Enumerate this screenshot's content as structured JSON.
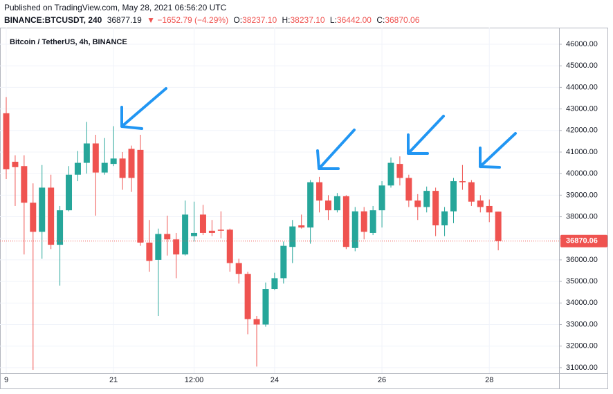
{
  "header": {
    "published": "Published on TradingView.com, May 28, 2021 06:56:20 UTC",
    "symbol": "BINANCE:BTCUSDT, 240",
    "price": "36877.19",
    "change": "▼ −1652.79 (−4.29%)",
    "ohlc": [
      {
        "label": "O:",
        "value": "38237.10"
      },
      {
        "label": "H:",
        "value": "38237.10"
      },
      {
        "label": "L:",
        "value": "36442.00"
      },
      {
        "label": "C:",
        "value": "36870.06"
      }
    ]
  },
  "chart_data": {
    "type": "candlestick",
    "title": "Bitcoin / TetherUS, 4h, BINANCE",
    "categories": [
      "9",
      null,
      null,
      null,
      null,
      null,
      null,
      null,
      null,
      null,
      null,
      null,
      "21",
      null,
      null,
      null,
      null,
      null,
      null,
      null,
      null,
      "12:00",
      null,
      null,
      null,
      null,
      null,
      null,
      null,
      null,
      "24",
      null,
      null,
      null,
      null,
      null,
      null,
      null,
      null,
      null,
      null,
      null,
      "26",
      null,
      null,
      null,
      null,
      null,
      null,
      null,
      null,
      null,
      null,
      null,
      "28",
      null
    ],
    "open": [
      42800,
      40550,
      40350,
      38650,
      37300,
      39350,
      36700,
      38300,
      39950,
      40500,
      41400,
      40050,
      40450,
      40700,
      41150,
      41100,
      36800,
      36000,
      37200,
      36950,
      36250,
      37100,
      38100,
      37350,
      37400,
      37400,
      35850,
      35350,
      33250,
      33000,
      34650,
      35150,
      36600,
      37600,
      37500,
      39600,
      38750,
      38300,
      38950,
      36550,
      38250,
      37250,
      38300,
      39450,
      40450,
      39800,
      38750,
      38450,
      39200,
      37600,
      38250,
      39650,
      39600,
      38750,
      38500,
      38237.1
    ],
    "high": [
      43550,
      40850,
      40850,
      39550,
      40400,
      39950,
      38500,
      40350,
      41050,
      42400,
      41800,
      41650,
      42200,
      41000,
      41300,
      41800,
      37850,
      37450,
      38050,
      37250,
      38750,
      38700,
      38550,
      37850,
      38250,
      37450,
      36050,
      35450,
      33400,
      34950,
      35400,
      36850,
      37850,
      38100,
      39700,
      39850,
      39000,
      39100,
      39000,
      38450,
      38450,
      38500,
      39650,
      40750,
      40800,
      39950,
      39050,
      39400,
      39350,
      38450,
      39800,
      40400,
      39700,
      39000,
      38800,
      38237.1
    ],
    "low": [
      39750,
      38500,
      36250,
      30900,
      36050,
      36500,
      34800,
      38250,
      39650,
      40000,
      38050,
      39950,
      40350,
      39250,
      39150,
      36650,
      35450,
      33400,
      36200,
      35150,
      36200,
      36850,
      37150,
      37100,
      37000,
      35450,
      34900,
      32550,
      31050,
      32900,
      34600,
      34900,
      35850,
      37450,
      36750,
      38200,
      37850,
      38200,
      36500,
      36400,
      36950,
      37150,
      37500,
      39350,
      39450,
      38450,
      37850,
      38200,
      37100,
      37100,
      37700,
      39250,
      38500,
      38200,
      37750,
      36442
    ],
    "close": [
      40200,
      40300,
      38650,
      37300,
      39350,
      36700,
      38300,
      39950,
      40500,
      41400,
      40050,
      40500,
      40700,
      39800,
      39800,
      36800,
      35950,
      37200,
      36950,
      36250,
      38100,
      37250,
      37250,
      37250,
      37350,
      35850,
      35350,
      33250,
      33000,
      34650,
      35150,
      36650,
      37550,
      37500,
      39600,
      38750,
      38300,
      38950,
      36600,
      38250,
      37300,
      38300,
      39450,
      40500,
      39800,
      38750,
      38450,
      39200,
      37600,
      38250,
      39650,
      39600,
      38700,
      38450,
      38200,
      36870.06
    ],
    "up_color": "#26a69a",
    "down_color": "#ef5350",
    "ylim": [
      30740,
      46770
    ],
    "yticks": [
      {
        "value": 31000,
        "label": "31000.00"
      },
      {
        "value": 32000,
        "label": "32000.00"
      },
      {
        "value": 33000,
        "label": "33000.00"
      },
      {
        "value": 34000,
        "label": "34000.00"
      },
      {
        "value": 35000,
        "label": "35000.00"
      },
      {
        "value": 36000,
        "label": "36000.00"
      },
      {
        "value": 37000,
        "label": "37000.00"
      },
      {
        "value": 38000,
        "label": "38000.00"
      },
      {
        "value": 39000,
        "label": "39000.00"
      },
      {
        "value": 40000,
        "label": "40000.00"
      },
      {
        "value": 41000,
        "label": "41000.00"
      },
      {
        "value": 42000,
        "label": "42000.00"
      },
      {
        "value": 43000,
        "label": "43000.00"
      },
      {
        "value": 44000,
        "label": "44000.00"
      },
      {
        "value": 45000,
        "label": "45000.00"
      },
      {
        "value": 46000,
        "label": "46000.00"
      }
    ],
    "grid": true
  }
}
